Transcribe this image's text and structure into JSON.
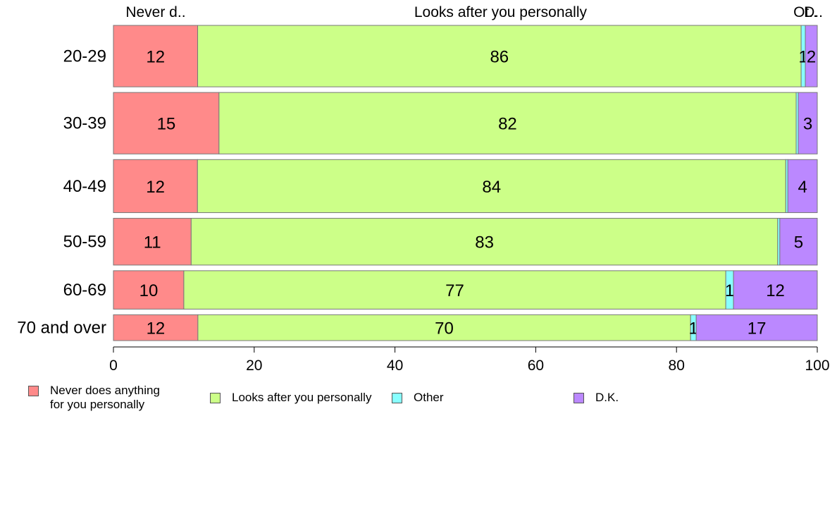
{
  "chart_data": {
    "type": "bar",
    "orientation": "horizontal",
    "stacked": true,
    "categories": [
      "20-29",
      "30-39",
      "40-49",
      "50-59",
      "60-69",
      "70 and over"
    ],
    "category_weights": [
      88,
      88,
      76,
      67,
      55,
      37
    ],
    "series": [
      {
        "name": "Never does anything for you personally",
        "short_label": "Never d..",
        "color": "#FF8A8A",
        "values": [
          12,
          15,
          12,
          11,
          10,
          12
        ],
        "labels": [
          "12",
          "15",
          "12",
          "11",
          "10",
          "12"
        ]
      },
      {
        "name": "Looks after you personally",
        "short_label": "Looks after you personally",
        "color": "#CCFF88",
        "values": [
          86,
          82,
          84,
          83,
          77,
          70
        ],
        "labels": [
          "86",
          "82",
          "84",
          "83",
          "77",
          "70"
        ]
      },
      {
        "name": "Other",
        "short_label": "Ot..",
        "color": "#88FFFF",
        "values": [
          0.6,
          0.3,
          0.3,
          0.3,
          1.1,
          0.8
        ],
        "labels": [
          "1",
          "",
          "",
          "",
          "1",
          "1"
        ]
      },
      {
        "name": "D.K.",
        "short_label": "D..",
        "color": "#BB88FF",
        "values": [
          1.7,
          2.7,
          4.2,
          5.3,
          11.9,
          17.2
        ],
        "labels": [
          "2",
          "3",
          "4",
          "5",
          "12",
          "17"
        ]
      }
    ],
    "xlim": [
      0,
      100
    ],
    "xticks": [
      "0",
      "20",
      "40",
      "60",
      "80",
      "100"
    ],
    "grid": false,
    "legend_position": "bottom"
  },
  "legend": {
    "items": [
      {
        "label": "Never does anything\nfor you personally",
        "color": "#FF8A8A"
      },
      {
        "label": "Looks after you personally",
        "color": "#CCFF88"
      },
      {
        "label": "Other",
        "color": "#88FFFF"
      },
      {
        "label": "D.K.",
        "color": "#BB88FF"
      }
    ]
  }
}
